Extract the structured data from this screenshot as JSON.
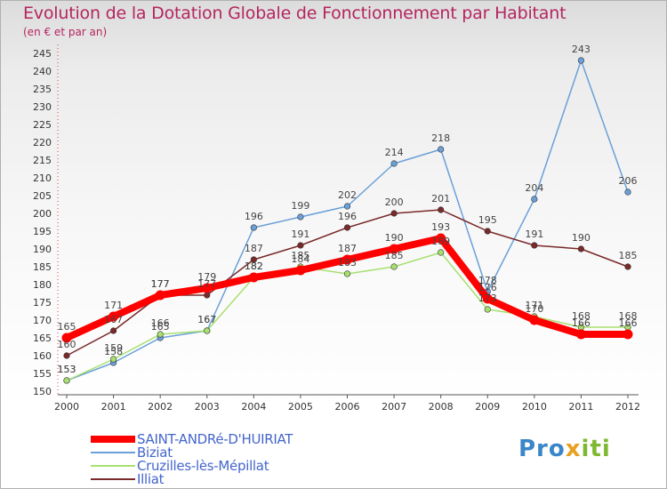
{
  "title": "Evolution de la Dotation Globale de Fonctionnement par Habitant",
  "subtitle": "(en € et par an)",
  "brand": {
    "part1": "Pro",
    "part2": "x",
    "part3": "iti"
  },
  "chart_data": {
    "type": "line",
    "title": "Evolution de la Dotation Globale de Fonctionnement par Habitant",
    "ylabel": "(en € et par an)",
    "xlabel": "",
    "ylim": [
      150,
      245
    ],
    "ytick_step": 5,
    "grid": false,
    "categories": [
      "2000",
      "2001",
      "2002",
      "2003",
      "2004",
      "2005",
      "2006",
      "2007",
      "2008",
      "2009",
      "2010",
      "2011",
      "2012"
    ],
    "series": [
      {
        "name": "SAINT-ANDRé-D'HUIRIAT",
        "color": "#ff0000",
        "values": [
          165,
          171,
          177,
          179,
          182,
          184,
          187,
          190,
          193,
          176,
          170,
          166,
          166
        ],
        "labels": [
          "165",
          "171",
          "177",
          "179",
          "182",
          "184",
          "187",
          "190",
          "193",
          "176",
          "170",
          "166",
          "166"
        ]
      },
      {
        "name": "Biziat",
        "color": "#6aa0d8",
        "values": [
          153,
          158,
          165,
          167,
          196,
          199,
          202,
          214,
          218,
          178,
          204,
          243,
          206
        ],
        "labels": [
          "153",
          "158",
          "165",
          "167",
          "196",
          "199",
          "202",
          "214",
          "218",
          "178",
          "204",
          "243",
          "206"
        ]
      },
      {
        "name": "Cruzilles-lès-Mépillat",
        "color": "#a8e070",
        "values": [
          153,
          159,
          166,
          167,
          182,
          185,
          183,
          185,
          189,
          173,
          171,
          168,
          168
        ],
        "labels": [
          "153",
          "159",
          "166",
          "167",
          "182",
          "185",
          "183",
          "185",
          "189",
          "173",
          "171",
          "168",
          "168"
        ]
      },
      {
        "name": "Illiat",
        "color": "#7a2a2a",
        "values": [
          160,
          167,
          177,
          177,
          187,
          191,
          196,
          200,
          201,
          195,
          191,
          190,
          185
        ],
        "labels": [
          "160",
          "167",
          "177",
          "177",
          "187",
          "191",
          "196",
          "200",
          "201",
          "195",
          "191",
          "190",
          "185"
        ]
      }
    ],
    "legend_position": "bottom-left"
  }
}
